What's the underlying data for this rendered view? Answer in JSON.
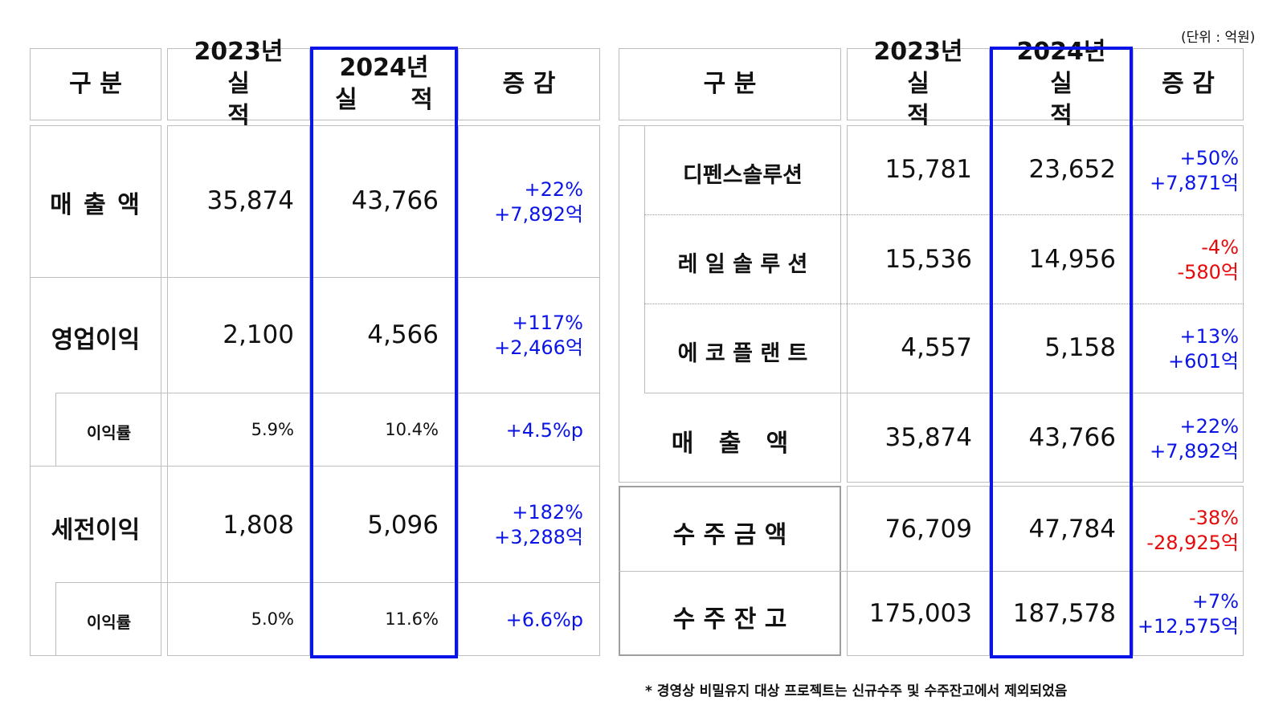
{
  "unit_note": "(단위 : 억원)",
  "footnote": "* 경영상 비밀유지 대상 프로젝트는 신규수주 및 수주잔고에서 제외되었음",
  "left": {
    "headers": {
      "category": "구 분",
      "y2023_line1": "2023년",
      "y2023_line2": "실 적",
      "y2024_line1": "2024년",
      "y2024_line2": "실 적",
      "change": "증 감"
    },
    "rows": [
      {
        "label": "매 출 액",
        "v2023": "35,874",
        "v2024": "43,766",
        "chg1": "+22%",
        "chg2": "+7,892억"
      },
      {
        "label": "영업이익",
        "v2023": "2,100",
        "v2024": "4,566",
        "chg1": "+117%",
        "chg2": "+2,466억"
      },
      {
        "label": "이익률",
        "v2023": "5.9%",
        "v2024": "10.4%",
        "chg1": "+4.5%p"
      },
      {
        "label": "세전이익",
        "v2023": "1,808",
        "v2024": "5,096",
        "chg1": "+182%",
        "chg2": "+3,288억"
      },
      {
        "label": "이익률",
        "v2023": "5.0%",
        "v2024": "11.6%",
        "chg1": "+6.6%p"
      }
    ]
  },
  "right": {
    "headers": {
      "category": "구 분",
      "y2023_line1": "2023년",
      "y2023_line2": "실 적",
      "y2024_line1": "2024년",
      "y2024_line2": "실 적",
      "change": "증 감"
    },
    "rows": [
      {
        "label": "디펜스솔루션",
        "v2023": "15,781",
        "v2024": "23,652",
        "chg1": "+50%",
        "chg2": "+7,871억"
      },
      {
        "label": "레 일 솔 루 션",
        "v2023": "15,536",
        "v2024": "14,956",
        "chg1": "-4%",
        "chg2": "-580억"
      },
      {
        "label": "에 코 플 랜 트",
        "v2023": "4,557",
        "v2024": "5,158",
        "chg1": "+13%",
        "chg2": "+601억"
      },
      {
        "label": "매   출   액",
        "v2023": "35,874",
        "v2024": "43,766",
        "chg1": "+22%",
        "chg2": "+7,892억"
      },
      {
        "label": "수 주 금 액",
        "v2023": "76,709",
        "v2024": "47,784",
        "chg1": "-38%",
        "chg2": "-28,925억"
      },
      {
        "label": "수 주 잔 고",
        "v2023": "175,003",
        "v2024": "187,578",
        "chg1": "+7%",
        "chg2": "+12,575억"
      }
    ]
  },
  "colors": {
    "positive": "#0a14e6",
    "negative": "#e60a0a",
    "highlight": "#0a14e6",
    "border": "#bdbdbd"
  }
}
